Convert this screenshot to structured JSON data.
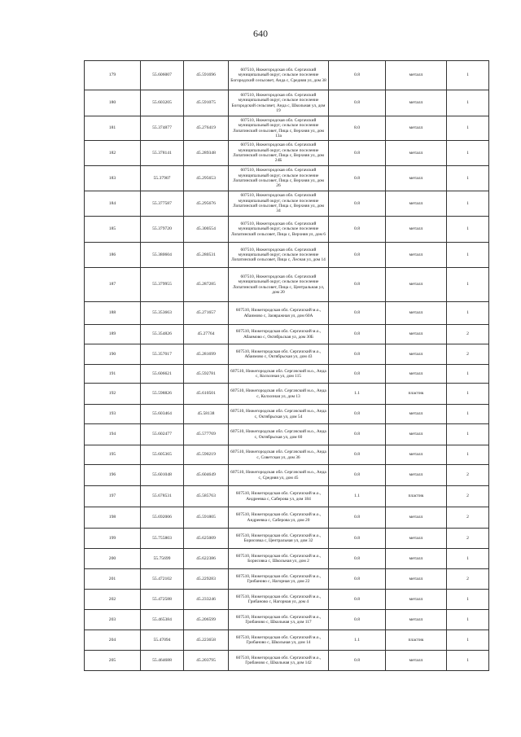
{
  "page_number": "640",
  "rows": [
    {
      "n": "179",
      "lat": "55.606007",
      "lon": "45.591696",
      "addr": "607510, Нижегородская обл. Сергачский муниципальный округ, сельское поселение Богородский сельсовет, Анда с, Средняя ул, дом 38",
      "v": "0.8",
      "mat": "металл",
      "cnt": "1"
    },
    {
      "n": "180",
      "lat": "55.603205",
      "lon": "45.591075",
      "addr": "607510, Нижегородская обл. Сергачский муниципальный округ, сельское поселение Богородский сельсовет, Анда с, Школьная ул, дом 19",
      "v": "0.8",
      "mat": "металл",
      "cnt": "1"
    },
    {
      "n": "181",
      "lat": "55.374877",
      "lon": "45.276419",
      "addr": "607510, Нижегородская обл. Сергачский муниципальный округ, сельское поселение Лопатинский сельсовет, Пица с, Верхняя ул, дом 13а",
      "v": "8.0",
      "mat": "металл",
      "cnt": "1"
    },
    {
      "n": "182",
      "lat": "55.378141",
      "lon": "45.289348",
      "addr": "607510, Нижегородская обл. Сергачский муниципальный округ, сельское поселение Лопатинский сельсовет, Пица с, Верхняя ул, дом 24Б",
      "v": "0.8",
      "mat": "металл",
      "cnt": "1"
    },
    {
      "n": "183",
      "lat": "55.37907",
      "lon": "45.295653",
      "addr": "607510, Нижегородская обл. Сергачский муниципальный округ, сельское поселение Лопатинский сельсовет, Пица с, Верхняя ул, дом 26",
      "v": "0.8",
      "mat": "металл",
      "cnt": "1"
    },
    {
      "n": "184",
      "lat": "55.377587",
      "lon": "45.295676",
      "addr": "607510, Нижегородская обл. Сергачский муниципальный округ, сельское поселение Лопатинский сельсовет, Пица с, Верхняя ул, дом 34",
      "v": "0.8",
      "mat": "металл",
      "cnt": "1"
    },
    {
      "n": "185",
      "lat": "55.379720",
      "lon": "45.300554",
      "addr": "607510, Нижегородская обл. Сергачский муниципальный округ, сельское поселение Лопатинский сельсовет, Пица с, Верхняя ул, дом 6",
      "v": "0.8",
      "mat": "металл",
      "cnt": "1"
    },
    {
      "n": "186",
      "lat": "55.380604",
      "lon": "45.280531",
      "addr": "607510, Нижегородская обл. Сергачский муниципальный округ, сельское поселение Лопатинский сельсовет, Пица с, Лесная ул, дом 14",
      "v": "0.8",
      "mat": "металл",
      "cnt": "1"
    },
    {
      "n": "187",
      "lat": "55.379955",
      "lon": "45.287285",
      "addr": "607510, Нижегородская обл. Сергачский муниципальный округ, сельское поселение Лопатинский сельсовет, Пица с, Центральная ул, дом 20",
      "v": "0.8",
      "mat": "металл",
      "cnt": "1"
    },
    {
      "n": "188",
      "lat": "55.353663",
      "lon": "45.271657",
      "addr": "607510, Нижегородская обл. Сергачский м.о., Абаимово с, Заовражная ул, дом 60А",
      "v": "0.8",
      "mat": "металл",
      "cnt": "1"
    },
    {
      "n": "189",
      "lat": "55.354826",
      "lon": "45.27764",
      "addr": "607510, Нижегородская обл. Сергачский м.о., Абаимово с, Октябрьская ул, дом 30Б",
      "v": "0.8",
      "mat": "металл",
      "cnt": "2"
    },
    {
      "n": "190",
      "lat": "55.357017",
      "lon": "45.281699",
      "addr": "607510, Нижегородская обл. Сергачский м.о., Абаимово с, Октябрьская ул, дом 43",
      "v": "0.8",
      "mat": "металл",
      "cnt": "2"
    },
    {
      "n": "191",
      "lat": "55.606621",
      "lon": "45.592781",
      "addr": "607510, Нижегородская обл. Сергачский м.о., Анда с, Колхозная ул, дом 115",
      "v": "0.8",
      "mat": "металл",
      "cnt": "1"
    },
    {
      "n": "192",
      "lat": "55.598826",
      "lon": "45.610501",
      "addr": "607510, Нижегородская обл. Сергачский м.о., Анда с, Колхозная ул, дом 13",
      "v": "1.1",
      "mat": "пластик",
      "cnt": "1"
    },
    {
      "n": "193",
      "lat": "55.603464",
      "lon": "45.58138",
      "addr": "607510, Нижегородская обл. Сергачский м.о., Анда с, Октябрьская ул, дом 54",
      "v": "0.8",
      "mat": "металл",
      "cnt": "1"
    },
    {
      "n": "194",
      "lat": "55.602477",
      "lon": "45.577769",
      "addr": "607510, Нижегородская обл. Сергачский м.о., Анда с, Октябрьская ул, дом 60",
      "v": "0.8",
      "mat": "металл",
      "cnt": "1"
    },
    {
      "n": "195",
      "lat": "55.605365",
      "lon": "45.590219",
      "addr": "607510, Нижегородская обл. Сергачский м.о., Анда с, Советская ул, дом 36",
      "v": "0.8",
      "mat": "металл",
      "cnt": "1"
    },
    {
      "n": "196",
      "lat": "55.601048",
      "lon": "45.604649",
      "addr": "607510, Нижегородская обл. Сергачский м.о., Анда с, Средняя ул, дом 45",
      "v": "0.8",
      "mat": "металл",
      "cnt": "2"
    },
    {
      "n": "197",
      "lat": "55.678531",
      "lon": "45.585763",
      "addr": "607510, Нижегородская обл. Сергачский м.о., Андреевка с, Саберова ул, дом 184",
      "v": "1.1",
      "mat": "пластик",
      "cnt": "2"
    },
    {
      "n": "198",
      "lat": "55.692006",
      "lon": "45.591805",
      "addr": "607510, Нижегородская обл. Сергачский м.о., Андреевка с, Саберова ул, дом 20",
      "v": "0.8",
      "mat": "металл",
      "cnt": "2"
    },
    {
      "n": "199",
      "lat": "55.755803",
      "lon": "45.625009",
      "addr": "607510, Нижегородская обл. Сергачский м.о., Борисовка с, Центральная ул, дом 32",
      "v": "0.8",
      "mat": "металл",
      "cnt": "2"
    },
    {
      "n": "200",
      "lat": "55.75699",
      "lon": "45.622386",
      "addr": "607510, Нижегородская обл. Сергачский м.о., Борисовка с, Школьная ул, дом 2",
      "v": "0.8",
      "mat": "металл",
      "cnt": "1"
    },
    {
      "n": "201",
      "lat": "55.472102",
      "lon": "45.229283",
      "addr": "607510, Нижегородская обл. Сергачский м.о., Грибаново с, Нагорная ул, дом 22",
      "v": "0.8",
      "mat": "металл",
      "cnt": "2"
    },
    {
      "n": "202",
      "lat": "55.472588",
      "lon": "45.233246",
      "addr": "607510, Нижегородская обл. Сергачский м.о., Грибаново с, Нагорная ул, дом 4",
      "v": "0.8",
      "mat": "металл",
      "cnt": "1"
    },
    {
      "n": "203",
      "lat": "55.465384",
      "lon": "45.206599",
      "addr": "607510, Нижегородская обл. Сергачский м.о., Грибаново с, Школьная ул, дом 117",
      "v": "0.8",
      "mat": "металл",
      "cnt": "1"
    },
    {
      "n": "204",
      "lat": "55.47094",
      "lon": "45.223658",
      "addr": "607510, Нижегородская обл. Сергачский м.о., Грибаново с, Школьная ул, дом 14",
      "v": "1.1",
      "mat": "пластик",
      "cnt": "1"
    },
    {
      "n": "205",
      "lat": "55.464688",
      "lon": "45.203795",
      "addr": "607510, Нижегородская обл. Сергачский м.о., Грибаново с, Школьная ул, дом 142",
      "v": "0.8",
      "mat": "металл",
      "cnt": "1"
    }
  ]
}
